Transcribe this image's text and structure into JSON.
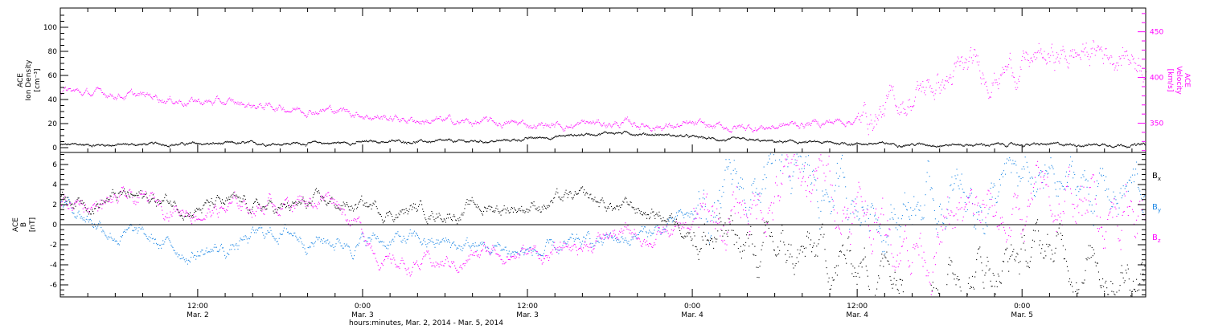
{
  "colors": {
    "density": "#000000",
    "velocity": "#ff00ff",
    "bx": "#000000",
    "by": "#1e88e5",
    "bz": "#ff00ff",
    "frame": "#000000"
  },
  "x_axis": {
    "caption": "hours:minutes, Mar. 2, 2014 - Mar. 5, 2014",
    "range_hours": [
      0,
      79
    ],
    "tick_times": [
      "12:00",
      "0:00",
      "12:00",
      "0:00",
      "12:00",
      "0:00"
    ],
    "tick_dates": [
      "Mar. 2",
      "Mar. 3",
      "Mar. 3",
      "Mar. 4",
      "Mar. 4",
      "Mar. 5"
    ]
  },
  "chart_data": [
    {
      "type": "scatter",
      "panel": "top",
      "ylabel_left": {
        "line1": "ACE",
        "line2": "Ion Density",
        "line3": "[cm⁻³]"
      },
      "ylabel_right": {
        "line1": "ACE",
        "line2": "Velocity",
        "line3": "[km/s]"
      },
      "left_ticks": [
        "0",
        "20",
        "40",
        "60",
        "80",
        "100"
      ],
      "right_ticks": [
        "350",
        "400",
        "450"
      ],
      "ylim_left": [
        -4,
        116
      ],
      "ylim_right": [
        318,
        476
      ],
      "grid": false,
      "series": [
        {
          "key": "density",
          "axis": "left",
          "hours": [
            0,
            4,
            8,
            12,
            16,
            20,
            24,
            28,
            32,
            36,
            40,
            44,
            48,
            52,
            56,
            60,
            64,
            68,
            72,
            76,
            79
          ],
          "values": [
            2.5,
            2.8,
            3.2,
            3.5,
            3.8,
            4.2,
            5.5,
            5.2,
            5.8,
            9.5,
            13,
            11,
            7,
            5.2,
            4.2,
            3.4,
            2.9,
            2.7,
            2.8,
            3,
            2.5
          ]
        },
        {
          "key": "velocity",
          "axis": "right",
          "hours": [
            0,
            2,
            4,
            6,
            7,
            8,
            12,
            16,
            20,
            24,
            26,
            28,
            32,
            36,
            40,
            44,
            48,
            52,
            56,
            58,
            60,
            62,
            64,
            66,
            68,
            70,
            72,
            74,
            76,
            79
          ],
          "values": [
            385,
            382,
            383,
            379,
            380,
            377,
            372,
            368,
            365,
            356,
            354,
            352,
            350,
            348,
            350,
            348,
            345,
            347,
            352,
            355,
            365,
            380,
            395,
            405,
            410,
            415,
            420,
            426,
            430,
            425
          ]
        }
      ]
    },
    {
      "type": "scatter",
      "panel": "bottom",
      "ylabel": {
        "line1": "ACE",
        "line2": "B",
        "line3": "[nT]"
      },
      "ticks": [
        "-6",
        "-4",
        "-2",
        "0",
        "2",
        "4",
        "6"
      ],
      "ylim": [
        -7.2,
        7.2
      ],
      "zero_line": true,
      "legend_position": "right",
      "legend": [
        {
          "key": "bx",
          "label": "B",
          "sub": "x"
        },
        {
          "key": "by",
          "label": "B",
          "sub": "y"
        },
        {
          "key": "bz",
          "label": "B",
          "sub": "z"
        }
      ],
      "series": [
        {
          "key": "bx",
          "hours": [
            0,
            4,
            8,
            12,
            16,
            20,
            24,
            28,
            32,
            36,
            40,
            44,
            48,
            52,
            56,
            60,
            64,
            68,
            72,
            76,
            79
          ],
          "values": [
            2.5,
            2.8,
            2.3,
            1.8,
            1.5,
            2,
            1.5,
            1.5,
            1.8,
            2.5,
            1.8,
            1,
            -1.5,
            -3.5,
            -3.8,
            -3.5,
            -4.5,
            -3.5,
            -3,
            -3,
            -3.5
          ],
          "amplitude": 1.2
        },
        {
          "key": "by",
          "hours": [
            0,
            4,
            8,
            12,
            16,
            20,
            24,
            28,
            32,
            36,
            40,
            44,
            48,
            52,
            56,
            60,
            64,
            68,
            72,
            76,
            79
          ],
          "values": [
            2.5,
            -0.5,
            -2.5,
            -2.5,
            -0.5,
            -1.5,
            -1.5,
            -2,
            -2.5,
            -3,
            -1.5,
            -0.5,
            2,
            4,
            3.5,
            2.5,
            2,
            3,
            3.5,
            3.5,
            3
          ],
          "amplitude": 1.3
        },
        {
          "key": "bz",
          "hours": [
            0,
            4,
            8,
            12,
            16,
            20,
            24,
            28,
            32,
            36,
            40,
            44,
            48,
            52,
            56,
            60,
            64,
            68,
            72,
            76,
            79
          ],
          "values": [
            2,
            2.2,
            2,
            1.5,
            2.5,
            3,
            -4,
            -4,
            -2.5,
            -3,
            -1,
            -1,
            0,
            3.5,
            4.5,
            0,
            -1,
            0,
            2,
            2,
            3
          ],
          "amplitude": 1.4
        }
      ]
    }
  ]
}
